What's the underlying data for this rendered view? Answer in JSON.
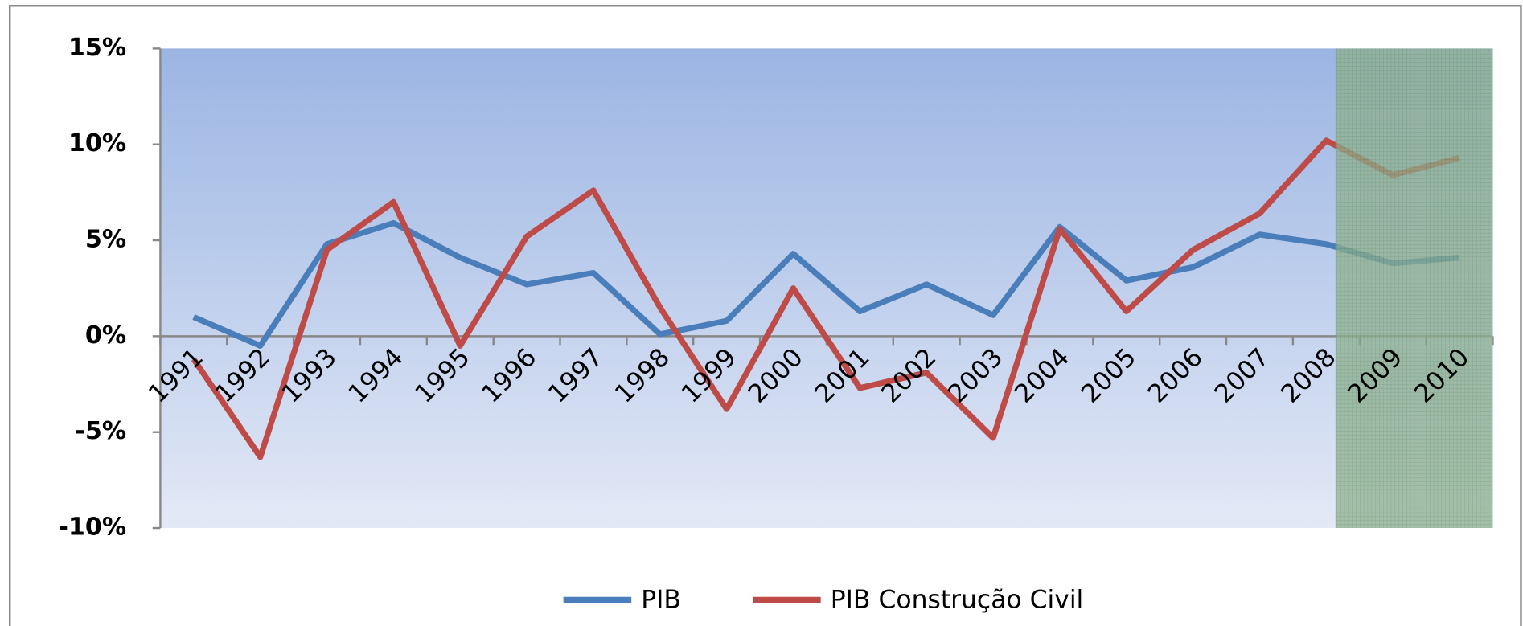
{
  "chart_data": {
    "type": "line",
    "categories": [
      "1991",
      "1992",
      "1993",
      "1994",
      "1995",
      "1996",
      "1997",
      "1998",
      "1999",
      "2000",
      "2001",
      "2002",
      "2003",
      "2004",
      "2005",
      "2006",
      "2007",
      "2008",
      "2009",
      "2010"
    ],
    "series": [
      {
        "name": "PIB",
        "color": "#4a7ebb",
        "values": [
          1.0,
          -0.5,
          4.8,
          5.9,
          4.1,
          2.7,
          3.3,
          0.1,
          0.8,
          4.3,
          1.3,
          2.7,
          1.1,
          5.7,
          2.9,
          3.6,
          5.3,
          4.8,
          3.8,
          4.1
        ]
      },
      {
        "name": "PIB Construção Civil",
        "color": "#be4b48",
        "values": [
          -1.2,
          -6.3,
          4.5,
          7.0,
          -0.5,
          5.2,
          7.6,
          1.5,
          -3.8,
          2.5,
          -2.7,
          -1.9,
          -5.3,
          5.6,
          1.3,
          4.5,
          6.4,
          10.2,
          8.4,
          9.3
        ]
      }
    ],
    "ylim": [
      -10,
      15
    ],
    "yticks": [
      {
        "value": -10,
        "label": "-10%"
      },
      {
        "value": -5,
        "label": "-5%"
      },
      {
        "value": 0,
        "label": "0%"
      },
      {
        "value": 5,
        "label": "5%"
      },
      {
        "value": 10,
        "label": "10%"
      },
      {
        "value": 15,
        "label": "15%"
      }
    ],
    "legend": "bottom"
  }
}
